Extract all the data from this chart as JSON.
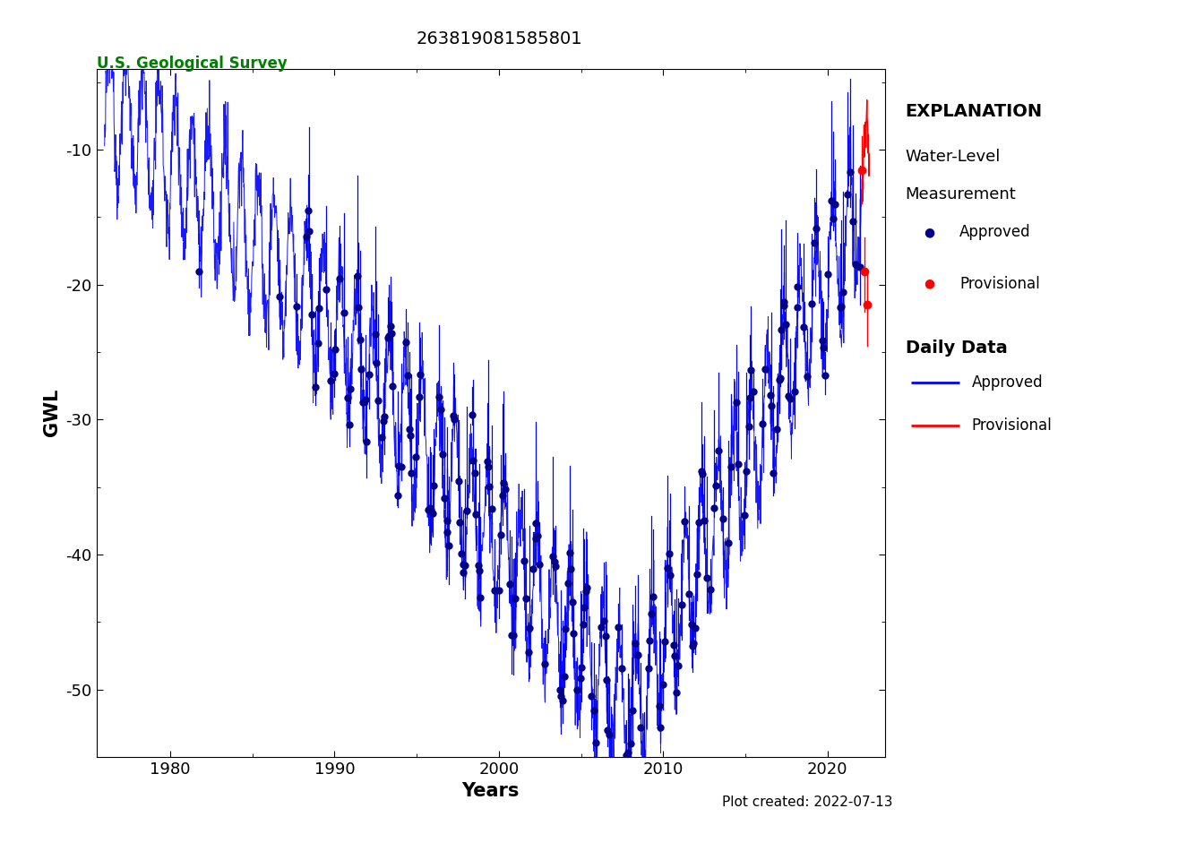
{
  "title": "263819081585801",
  "usgs_label": "U.S. Geological Survey",
  "xlabel": "Years",
  "ylabel": "GWL",
  "plot_created": "Plot created: 2022-07-13",
  "ylim": [
    -55,
    -4
  ],
  "xlim": [
    1975.5,
    2023.5
  ],
  "yticks": [
    -50,
    -40,
    -30,
    -20,
    -10
  ],
  "xticks": [
    1980,
    1990,
    2000,
    2010,
    2020
  ],
  "title_color": "#000000",
  "usgs_color": "#008000",
  "approved_dot_color": "#00008B",
  "provisional_dot_color": "#FF0000",
  "approved_line_color": "#0000FF",
  "provisional_line_color": "#FF0000",
  "background_color": "#FFFFFF",
  "legend_title": "EXPLANATION",
  "legend_sub1": "Water-Level",
  "legend_sub2": "Measurement",
  "legend_approved_dot": "Approved",
  "legend_prov_dot": "Provisional",
  "legend_daily": "Daily Data",
  "legend_daily_approved": "Approved",
  "legend_daily_prov": "Provisional"
}
